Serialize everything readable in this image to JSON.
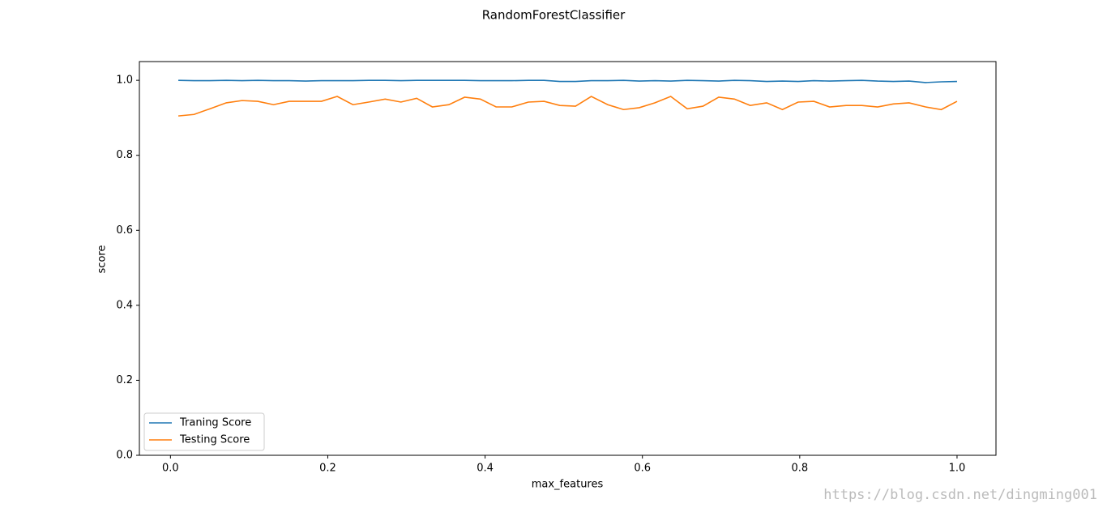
{
  "chart_data": {
    "type": "line",
    "title": "RandomForestClassifier",
    "x_label": "max_features",
    "y_label": "score",
    "x": [
      0.01,
      0.03,
      0.05,
      0.071,
      0.091,
      0.111,
      0.131,
      0.151,
      0.172,
      0.192,
      0.212,
      0.232,
      0.252,
      0.273,
      0.293,
      0.313,
      0.333,
      0.354,
      0.374,
      0.394,
      0.414,
      0.434,
      0.455,
      0.475,
      0.495,
      0.515,
      0.535,
      0.556,
      0.576,
      0.596,
      0.616,
      0.636,
      0.657,
      0.677,
      0.697,
      0.717,
      0.737,
      0.758,
      0.778,
      0.798,
      0.818,
      0.838,
      0.859,
      0.879,
      0.899,
      0.919,
      0.939,
      0.96,
      0.98,
      1.0
    ],
    "series": [
      {
        "name": "Traning Score",
        "color": "#1f77b4",
        "values": [
          1.0,
          0.999,
          0.999,
          1.0,
          0.999,
          1.0,
          0.999,
          0.999,
          0.998,
          0.999,
          0.999,
          0.999,
          1.0,
          1.0,
          0.999,
          1.0,
          1.0,
          1.0,
          1.0,
          0.999,
          0.999,
          0.999,
          1.0,
          1.0,
          0.997,
          0.997,
          0.999,
          0.999,
          1.0,
          0.998,
          0.999,
          0.998,
          1.0,
          0.999,
          0.998,
          1.0,
          0.999,
          0.997,
          0.998,
          0.997,
          0.999,
          0.998,
          0.999,
          1.0,
          0.998,
          0.997,
          0.998,
          0.994,
          0.996,
          0.997
        ]
      },
      {
        "name": "Testing Score",
        "color": "#ff7f0e",
        "values": [
          0.905,
          0.909,
          0.924,
          0.94,
          0.946,
          0.944,
          0.935,
          0.944,
          0.944,
          0.944,
          0.957,
          0.935,
          0.942,
          0.95,
          0.942,
          0.952,
          0.929,
          0.935,
          0.955,
          0.95,
          0.929,
          0.929,
          0.942,
          0.944,
          0.933,
          0.931,
          0.957,
          0.935,
          0.922,
          0.927,
          0.94,
          0.957,
          0.924,
          0.931,
          0.955,
          0.95,
          0.933,
          0.94,
          0.922,
          0.942,
          0.944,
          0.929,
          0.933,
          0.933,
          0.929,
          0.937,
          0.94,
          0.929,
          0.922,
          0.944
        ]
      }
    ],
    "xlim": [
      -0.0395,
      1.0495
    ],
    "xticks": [
      {
        "value": 0,
        "label": "0.0"
      },
      0.2,
      0.4,
      0.6,
      0.8,
      {
        "value": 1,
        "label": "1.0"
      }
    ],
    "ylim": [
      0,
      1.05
    ],
    "yticks": [
      {
        "value": 0,
        "label": "0.0"
      },
      0.2,
      0.4,
      0.6,
      0.8,
      {
        "value": 1,
        "label": "1.0"
      }
    ],
    "grid": false,
    "legend": "lower left",
    "watermark": "https://blog.csdn.net/dingming001"
  }
}
